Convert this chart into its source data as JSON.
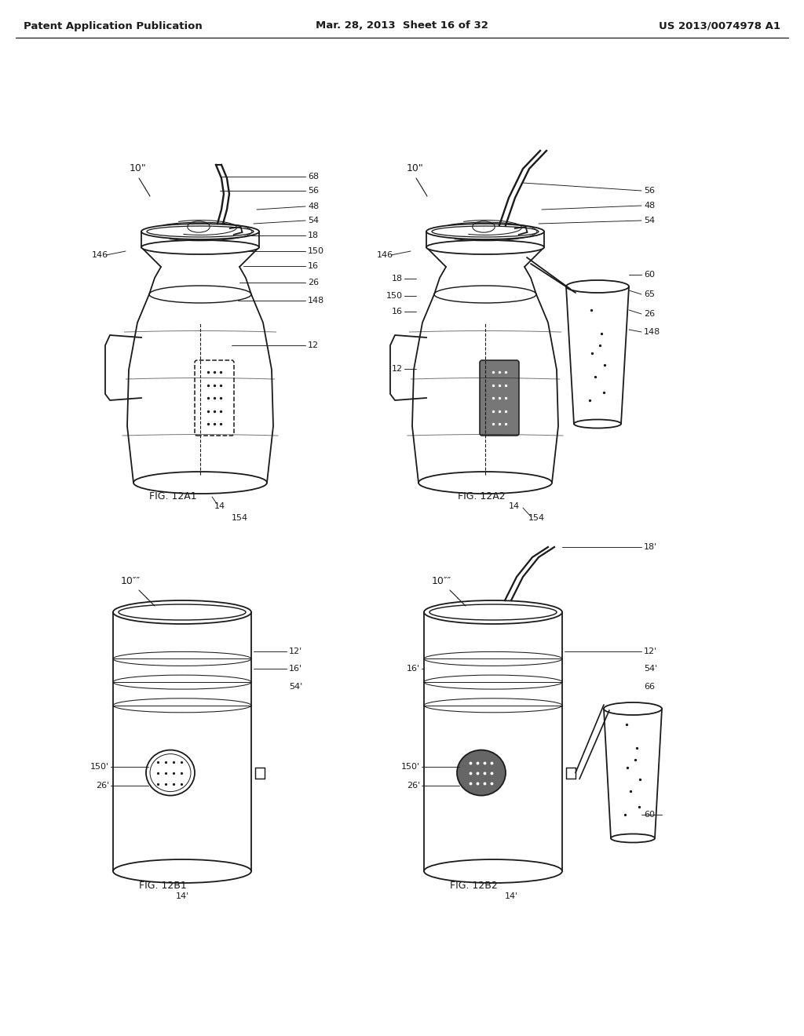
{
  "title_left": "Patent Application Publication",
  "title_mid": "Mar. 28, 2013  Sheet 16 of 32",
  "title_right": "US 2013/0074978 A1",
  "bg": "#ffffff",
  "lc": "#1a1a1a",
  "header_fs": 9.5,
  "ref_fs": 8.0,
  "fig_label_fs": 9.0
}
